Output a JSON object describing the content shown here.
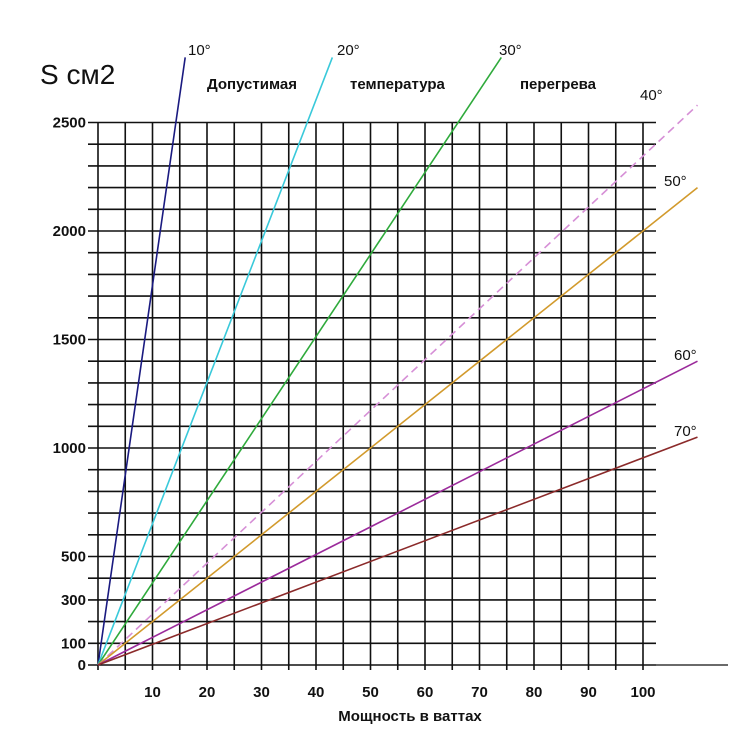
{
  "chart_data": {
    "type": "line",
    "ylabel": "S см2",
    "xlabel": "Мощность в ваттах",
    "annotation": [
      "Допустимая",
      "температура",
      "перегрева"
    ],
    "x_ticks": [
      "10",
      "20",
      "30",
      "40",
      "50",
      "60",
      "70",
      "80",
      "90",
      "100"
    ],
    "y_ticks": [
      {
        "value": 0,
        "label": "0"
      },
      {
        "value": 100,
        "label": "100"
      },
      {
        "value": 300,
        "label": "300"
      },
      {
        "value": 500,
        "label": "500"
      },
      {
        "value": 1000,
        "label": "1000"
      },
      {
        "value": 1500,
        "label": "1500"
      },
      {
        "value": 2000,
        "label": "2000"
      },
      {
        "value": 2500,
        "label": "2500"
      }
    ],
    "xlim": [
      0,
      110
    ],
    "ylim": [
      0,
      2500
    ],
    "grid": true,
    "series": [
      {
        "name": "10°",
        "color": "#1a1a80",
        "dashed": false,
        "points": [
          [
            0,
            0
          ],
          [
            16,
            2800
          ]
        ]
      },
      {
        "name": "20°",
        "color": "#39c9da",
        "dashed": false,
        "points": [
          [
            0,
            0
          ],
          [
            43,
            2800
          ]
        ]
      },
      {
        "name": "30°",
        "color": "#2faa3c",
        "dashed": false,
        "points": [
          [
            0,
            0
          ],
          [
            74,
            2800
          ]
        ]
      },
      {
        "name": "40°",
        "color": "#d68fd6",
        "dashed": true,
        "points": [
          [
            0,
            0
          ],
          [
            110,
            2580
          ]
        ]
      },
      {
        "name": "50°",
        "color": "#d29a2c",
        "dashed": false,
        "points": [
          [
            0,
            0
          ],
          [
            110,
            2200
          ]
        ]
      },
      {
        "name": "60°",
        "color": "#9b2b9b",
        "dashed": false,
        "points": [
          [
            0,
            0
          ],
          [
            110,
            1400
          ]
        ]
      },
      {
        "name": "70°",
        "color": "#8b2a2a",
        "dashed": false,
        "points": [
          [
            0,
            0
          ],
          [
            110,
            1050
          ]
        ]
      }
    ]
  }
}
